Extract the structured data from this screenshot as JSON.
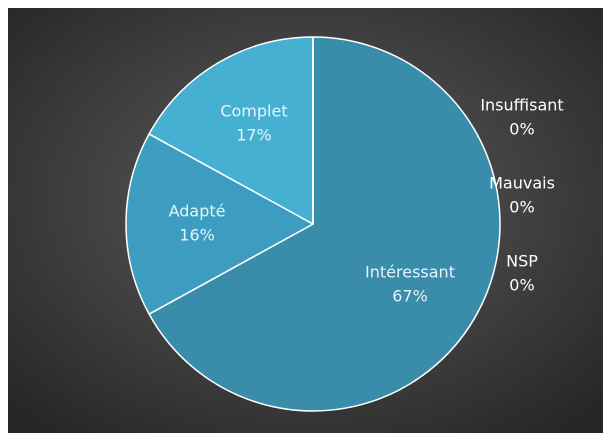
{
  "chart_data": {
    "type": "pie",
    "categories": [
      "Intéressant",
      "Adapté",
      "Complet",
      "Insuffisant",
      "Mauvais",
      "NSP"
    ],
    "values": [
      67,
      16,
      17,
      0,
      0,
      0
    ],
    "value_labels": [
      "67%",
      "16%",
      "17%",
      "0%",
      "0%",
      "0%"
    ],
    "colors": [
      "#3a8cab",
      "#3d9dc0",
      "#46b0d3",
      "#4cb8dc",
      "#4cb8dc",
      "#4cb8dc"
    ]
  }
}
